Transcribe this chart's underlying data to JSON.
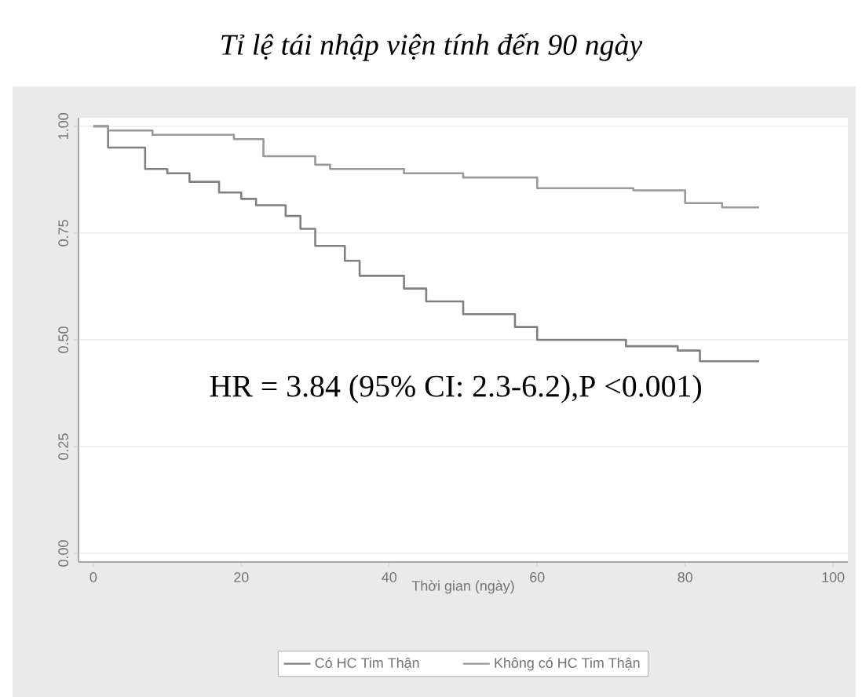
{
  "chart_data": {
    "type": "step",
    "title": "Tỉ lệ tái nhập viện tính đến 90 ngày",
    "xlabel": "Thời gian (ngày)",
    "xlim": [
      -2,
      102
    ],
    "ylim": [
      -0.02,
      1.02
    ],
    "xticks": [
      0,
      20,
      40,
      60,
      80,
      100
    ],
    "yticks": [
      {
        "value": 0,
        "label": "0.00"
      },
      {
        "value": 0.25,
        "label": "0.25"
      },
      {
        "value": 0.5,
        "label": "0.50"
      },
      {
        "value": 0.75,
        "label": "0.75"
      },
      {
        "value": 1,
        "label": "1.00"
      }
    ],
    "grid": "y",
    "legend": "bottom",
    "annotations": [
      "HR = 3.84 (95% CI: 2.3-6.2),P <0.001)"
    ],
    "series": [
      {
        "name": "Có HC Tim Thận",
        "color": "#808080",
        "x": [
          0,
          2,
          7,
          10,
          13,
          17,
          20,
          22,
          26,
          28,
          30,
          34,
          36,
          42,
          45,
          50,
          57,
          60,
          72,
          79,
          82,
          90
        ],
        "values": [
          1.0,
          0.95,
          0.9,
          0.89,
          0.87,
          0.845,
          0.83,
          0.815,
          0.79,
          0.76,
          0.72,
          0.685,
          0.65,
          0.62,
          0.59,
          0.56,
          0.53,
          0.5,
          0.485,
          0.475,
          0.45,
          0.45
        ]
      },
      {
        "name": "Không có HC Tim Thận",
        "color": "#999999",
        "x": [
          0,
          2,
          8,
          19,
          23,
          30,
          32,
          42,
          50,
          60,
          73,
          80,
          85,
          90
        ],
        "values": [
          1.0,
          0.99,
          0.98,
          0.97,
          0.93,
          0.91,
          0.9,
          0.89,
          0.88,
          0.855,
          0.85,
          0.82,
          0.81,
          0.81
        ]
      }
    ]
  }
}
